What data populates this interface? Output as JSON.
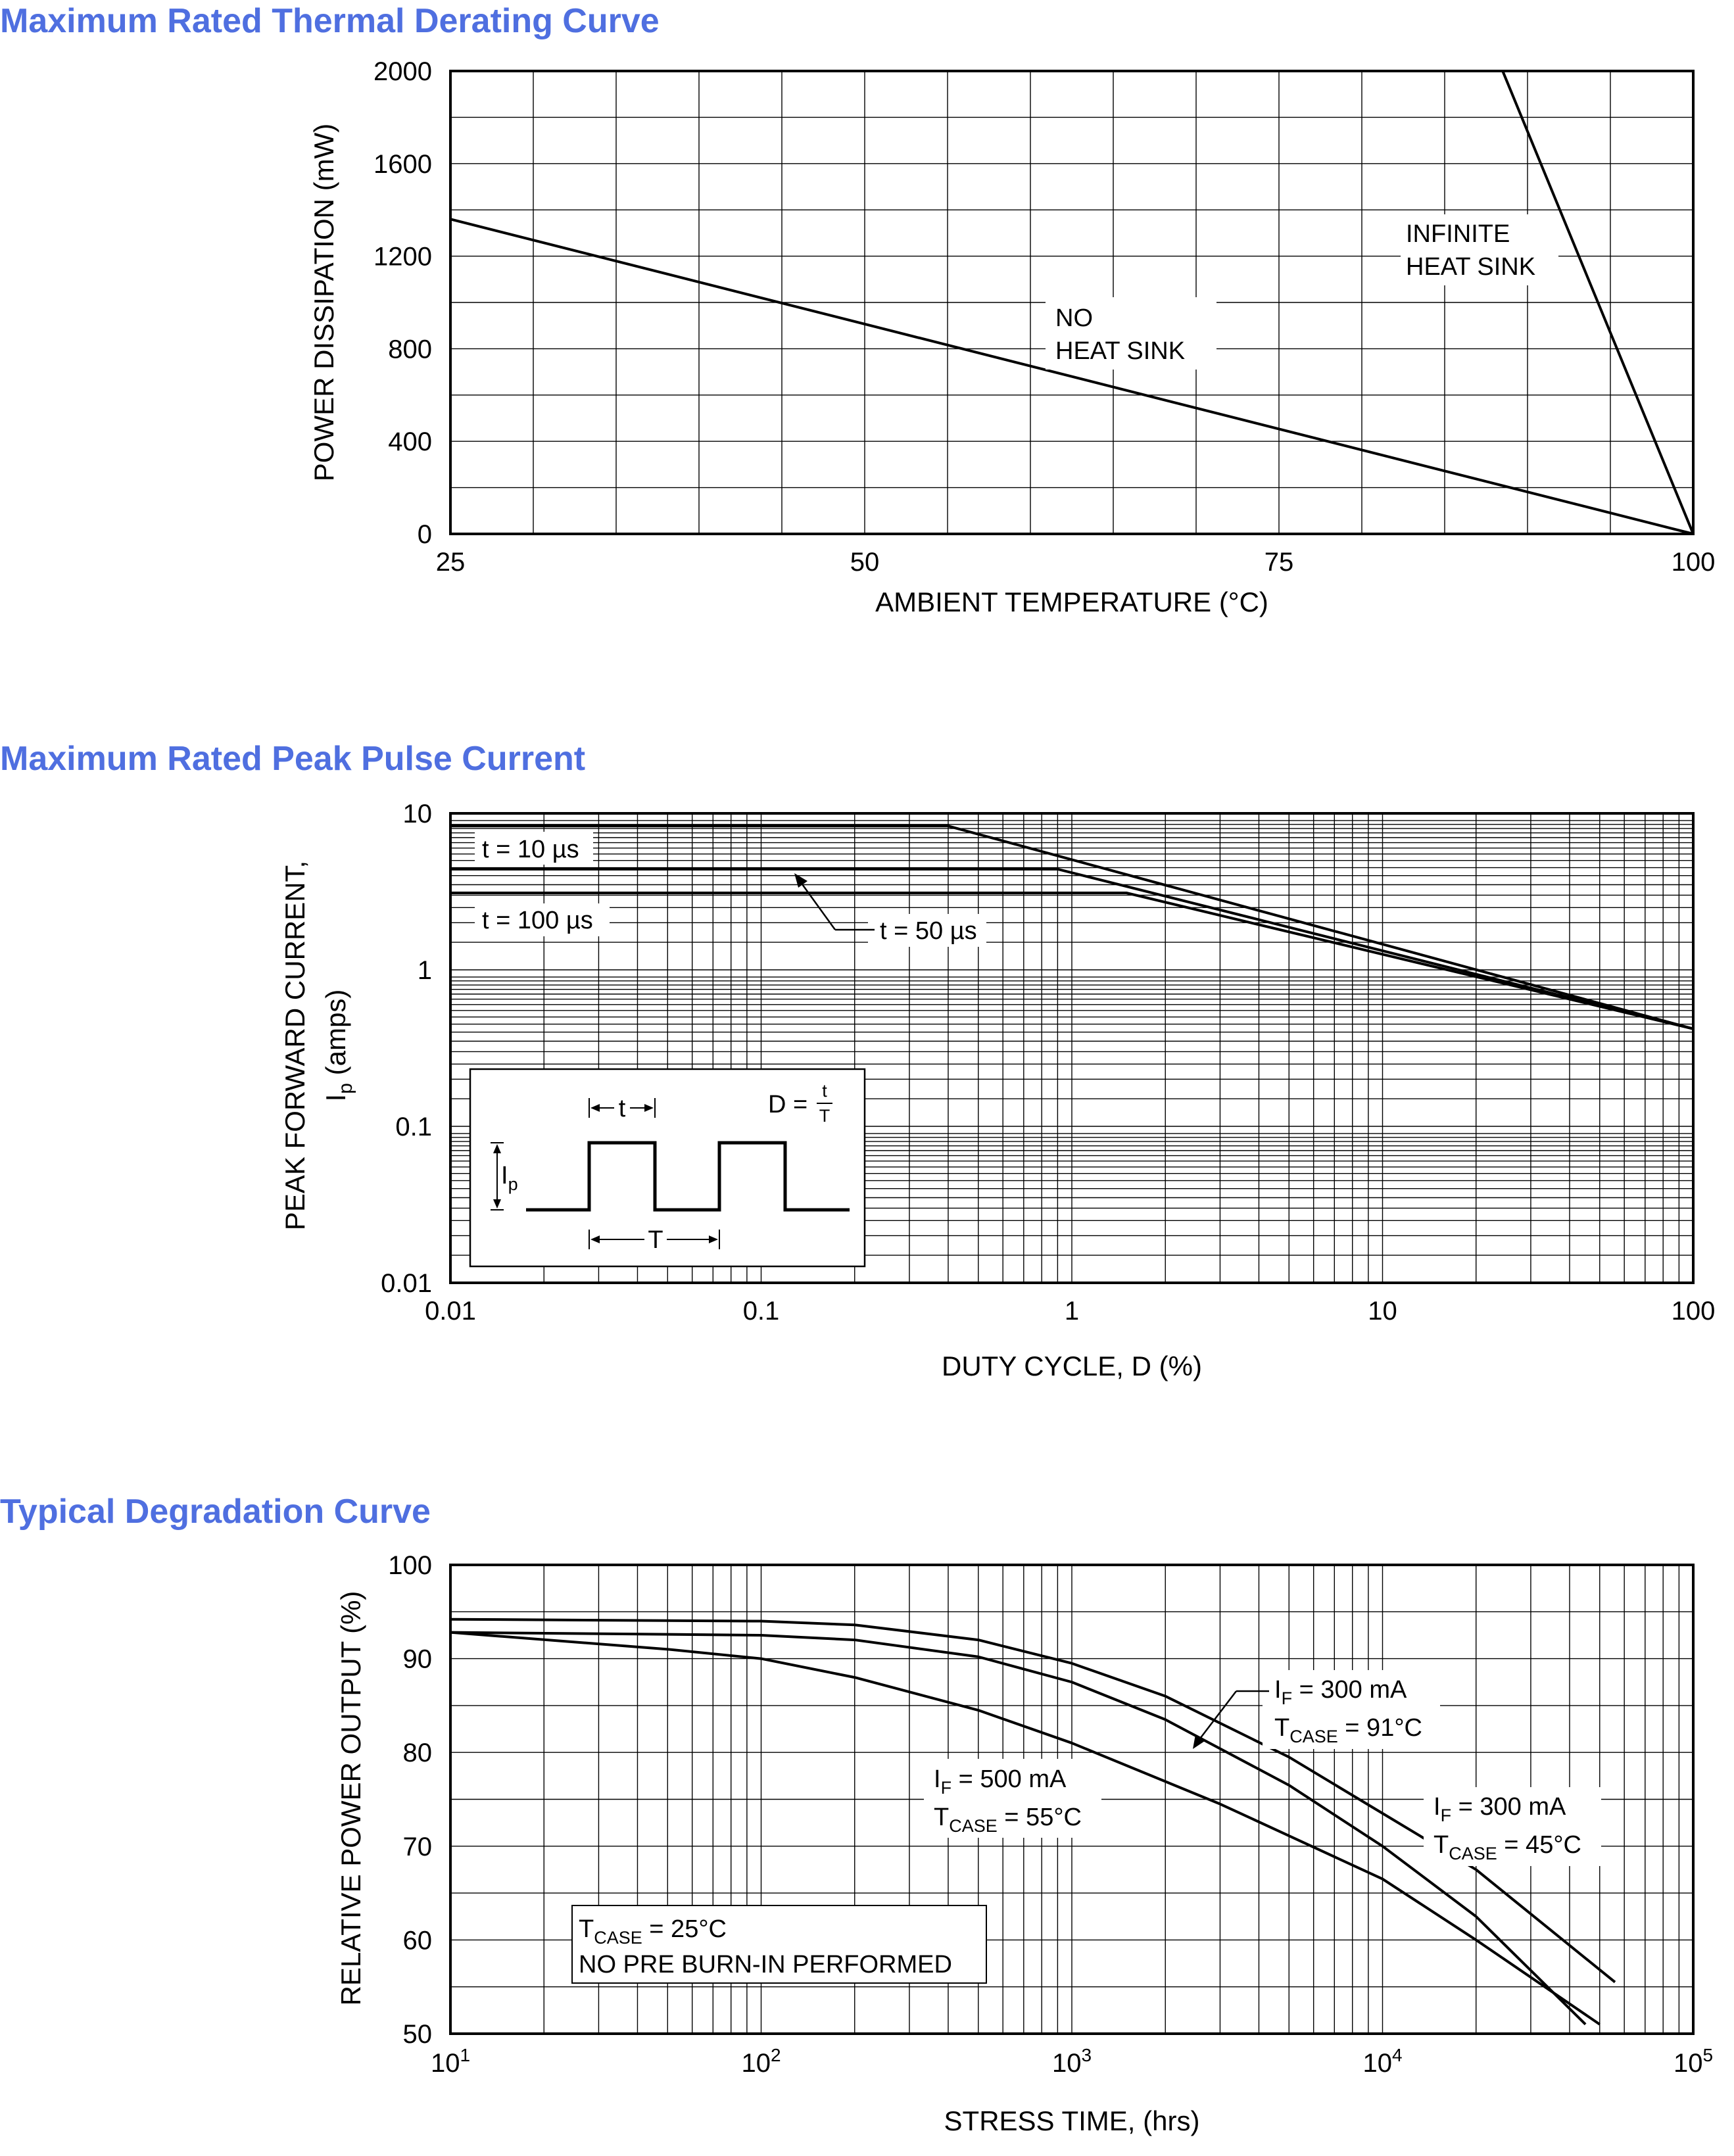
{
  "charts": [
    {
      "title": "Maximum Rated Thermal Derating Curve",
      "xlabel": "AMBIENT TEMPERATURE (°C)",
      "ylabel": "POWER DISSIPATION (mW)",
      "xticks": [
        "25",
        "50",
        "75",
        "100"
      ],
      "yticks": [
        "0",
        "400",
        "800",
        "1200",
        "1600",
        "2000"
      ]
    },
    {
      "title": "Maximum Rated Peak Pulse Current",
      "xlabel": "DUTY CYCLE, D (%)",
      "ylabel_line1": "PEAK FORWARD CURRENT,",
      "ylabel_line2_main": "I",
      "ylabel_line2_sub": "p",
      "ylabel_line2_rest": " (amps)",
      "xticks": [
        "0.01",
        "0.1",
        "1",
        "10",
        "100"
      ],
      "yticks": [
        "0.01",
        "0.1",
        "1",
        "10"
      ],
      "inset": {
        "d_label": "D =",
        "frac_num": "t",
        "frac_den": "T",
        "t_label": "t",
        "T_label": "T",
        "ip_main": "I",
        "ip_sub": "p"
      }
    },
    {
      "title": "Typical Degradation Curve",
      "xlabel": "STRESS TIME, (hrs)",
      "ylabel": "RELATIVE POWER OUTPUT (%)",
      "xtick_base": "10",
      "xtick_exps": [
        "1",
        "2",
        "3",
        "4",
        "5"
      ],
      "yticks": [
        "50",
        "60",
        "70",
        "80",
        "90",
        "100"
      ],
      "note_line1_main": "T",
      "note_line1_sub": "CASE",
      "note_line1_rest": " = 25°C",
      "note_line2": "NO PRE BURN-IN PERFORMED"
    }
  ],
  "chart_data": [
    {
      "type": "line",
      "title": "Maximum Rated Thermal Derating Curve",
      "xlabel": "AMBIENT TEMPERATURE (°C)",
      "ylabel": "POWER DISSIPATION (mW)",
      "xlim": [
        25,
        100
      ],
      "ylim": [
        0,
        2000
      ],
      "series": [
        {
          "name": "NO HEAT SINK",
          "label_lines": [
            "NO",
            "HEAT SINK"
          ],
          "x": [
            25,
            100
          ],
          "y": [
            1360,
            0
          ]
        },
        {
          "name": "INFINITE HEAT SINK",
          "label_lines": [
            "INFINITE",
            "HEAT SINK"
          ],
          "x": [
            25,
            88.5,
            100
          ],
          "y": [
            2000,
            2000,
            0
          ]
        }
      ]
    },
    {
      "type": "line",
      "title": "Maximum Rated Peak Pulse Current",
      "xlabel": "DUTY CYCLE, D (%)",
      "ylabel": "PEAK FORWARD CURRENT, Ip (amps)",
      "xscale": "log",
      "yscale": "log",
      "xlim": [
        0.01,
        100
      ],
      "ylim": [
        0.01,
        10
      ],
      "series": [
        {
          "name": "t = 10 µs",
          "x": [
            0.01,
            0.4,
            100
          ],
          "y": [
            8.3,
            8.3,
            0.42
          ]
        },
        {
          "name": "t = 50 µs",
          "x": [
            0.01,
            0.9,
            100
          ],
          "y": [
            4.4,
            4.4,
            0.42
          ]
        },
        {
          "name": "t = 100 µs",
          "x": [
            0.01,
            1.5,
            100
          ],
          "y": [
            3.1,
            3.1,
            0.42
          ]
        }
      ]
    },
    {
      "type": "line",
      "title": "Typical Degradation Curve",
      "xlabel": "STRESS TIME, (hrs)",
      "ylabel": "RELATIVE POWER OUTPUT (%)",
      "xscale": "log",
      "xlim": [
        10,
        100000
      ],
      "ylim": [
        50,
        100
      ],
      "series": [
        {
          "name": "IF = 300 mA, TCASE = 91°C",
          "label_main": "I",
          "label_sub": "F",
          "label_rest": " = 300 mA",
          "temp_main": "T",
          "temp_sub": "CASE",
          "temp_rest": " = 91°C",
          "x": [
            10,
            100,
            200,
            500,
            1000,
            2000,
            5000,
            10000,
            20000,
            45000
          ],
          "y": [
            92.8,
            92.5,
            92.0,
            90.2,
            87.5,
            83.5,
            76.5,
            70.0,
            62.5,
            51.0
          ]
        },
        {
          "name": "IF = 500 mA, TCASE = 55°C",
          "label_main": "I",
          "label_sub": "F",
          "label_rest": " = 500 mA",
          "temp_main": "T",
          "temp_sub": "CASE",
          "temp_rest": " = 55°C",
          "x": [
            10,
            50,
            100,
            200,
            500,
            1000,
            3000,
            10000,
            20000,
            50000
          ],
          "y": [
            92.8,
            91.0,
            90.0,
            88.0,
            84.5,
            81.0,
            74.5,
            66.5,
            60.0,
            51.0
          ]
        },
        {
          "name": "IF = 300 mA, TCASE = 45°C",
          "label_main": "I",
          "label_sub": "F",
          "label_rest": " = 300 mA",
          "temp_main": "T",
          "temp_sub": "CASE",
          "temp_rest": " = 45°C",
          "x": [
            10,
            100,
            200,
            500,
            1000,
            2000,
            5000,
            10000,
            20000,
            56000
          ],
          "y": [
            94.2,
            94.0,
            93.6,
            92.0,
            89.5,
            86.0,
            79.5,
            73.5,
            67.5,
            55.5
          ]
        }
      ]
    }
  ]
}
